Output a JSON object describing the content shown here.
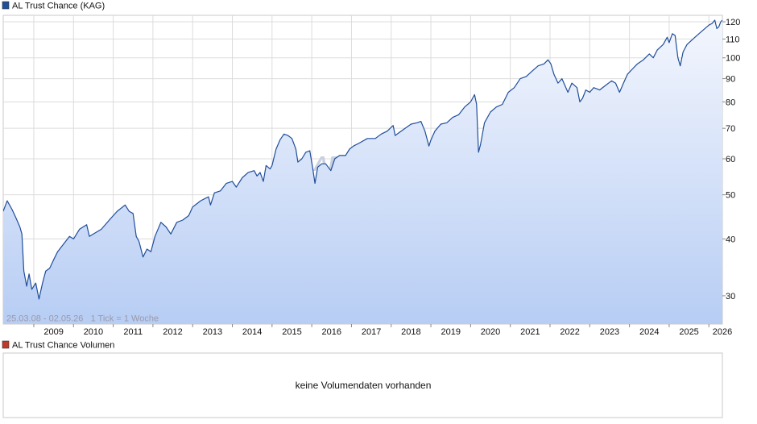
{
  "price_panel": {
    "legend_label": "AL Trust Chance (KAG)",
    "legend_color": "#1f4e9b",
    "info_text": "25.03.08 - 02.05.26   1 Tick = 1 Woche",
    "watermark": "ARIVA.DE"
  },
  "volume_panel": {
    "legend_label": "AL Trust Chance Volumen",
    "legend_color": "#c0392b",
    "empty_message": "keine Volumendaten vorhanden"
  },
  "chart_data": {
    "type": "area",
    "y_scale": "log",
    "ylim": [
      26,
      124
    ],
    "y_ticks": [
      30,
      40,
      50,
      60,
      70,
      80,
      90,
      100,
      110,
      120
    ],
    "x_range": [
      2008.23,
      2026.34
    ],
    "x_ticks": [
      "2009",
      "2010",
      "2011",
      "2012",
      "2013",
      "2014",
      "2015",
      "2016",
      "2017",
      "2018",
      "2019",
      "2020",
      "2021",
      "2022",
      "2023",
      "2024",
      "2025",
      "2026"
    ],
    "grid": true,
    "line_color": "#1f4e9b",
    "area_color_top": "#f3f6fd",
    "area_color_bottom": "#b7cdf4",
    "series": [
      {
        "values": [
          [
            2008.23,
            46.0
          ],
          [
            2008.33,
            48.5
          ],
          [
            2008.45,
            46.5
          ],
          [
            2008.55,
            44.5
          ],
          [
            2008.65,
            42.5
          ],
          [
            2008.7,
            41.0
          ],
          [
            2008.75,
            34.0
          ],
          [
            2008.82,
            31.5
          ],
          [
            2008.88,
            33.5
          ],
          [
            2008.95,
            31.0
          ],
          [
            2009.05,
            32.0
          ],
          [
            2009.13,
            29.5
          ],
          [
            2009.22,
            32.0
          ],
          [
            2009.3,
            34.0
          ],
          [
            2009.4,
            34.5
          ],
          [
            2009.5,
            36.0
          ],
          [
            2009.6,
            37.5
          ],
          [
            2009.75,
            39.0
          ],
          [
            2009.9,
            40.5
          ],
          [
            2010.0,
            40.0
          ],
          [
            2010.15,
            42.0
          ],
          [
            2010.33,
            43.0
          ],
          [
            2010.4,
            40.5
          ],
          [
            2010.5,
            41.0
          ],
          [
            2010.7,
            42.0
          ],
          [
            2010.9,
            44.0
          ],
          [
            2011.0,
            45.0
          ],
          [
            2011.1,
            46.0
          ],
          [
            2011.3,
            47.5
          ],
          [
            2011.4,
            46.0
          ],
          [
            2011.5,
            45.5
          ],
          [
            2011.58,
            40.5
          ],
          [
            2011.65,
            39.5
          ],
          [
            2011.75,
            36.5
          ],
          [
            2011.85,
            38.0
          ],
          [
            2011.95,
            37.5
          ],
          [
            2012.05,
            40.5
          ],
          [
            2012.2,
            43.5
          ],
          [
            2012.33,
            42.5
          ],
          [
            2012.45,
            41.0
          ],
          [
            2012.6,
            43.5
          ],
          [
            2012.75,
            44.0
          ],
          [
            2012.9,
            45.0
          ],
          [
            2013.0,
            47.0
          ],
          [
            2013.2,
            48.5
          ],
          [
            2013.4,
            49.5
          ],
          [
            2013.45,
            47.5
          ],
          [
            2013.55,
            50.5
          ],
          [
            2013.7,
            51.0
          ],
          [
            2013.85,
            53.0
          ],
          [
            2014.0,
            53.5
          ],
          [
            2014.1,
            52.0
          ],
          [
            2014.25,
            54.5
          ],
          [
            2014.4,
            56.0
          ],
          [
            2014.55,
            56.5
          ],
          [
            2014.62,
            55.0
          ],
          [
            2014.7,
            56.0
          ],
          [
            2014.78,
            53.5
          ],
          [
            2014.85,
            58.0
          ],
          [
            2014.95,
            57.0
          ],
          [
            2015.0,
            58.0
          ],
          [
            2015.1,
            63.0
          ],
          [
            2015.2,
            66.0
          ],
          [
            2015.3,
            68.0
          ],
          [
            2015.4,
            67.5
          ],
          [
            2015.5,
            66.5
          ],
          [
            2015.6,
            63.0
          ],
          [
            2015.65,
            59.0
          ],
          [
            2015.75,
            60.0
          ],
          [
            2015.85,
            62.0
          ],
          [
            2015.95,
            62.5
          ],
          [
            2016.02,
            57.5
          ],
          [
            2016.08,
            53.0
          ],
          [
            2016.15,
            57.5
          ],
          [
            2016.25,
            58.5
          ],
          [
            2016.35,
            58.5
          ],
          [
            2016.48,
            56.5
          ],
          [
            2016.58,
            60.0
          ],
          [
            2016.7,
            61.0
          ],
          [
            2016.85,
            61.0
          ],
          [
            2016.95,
            63.0
          ],
          [
            2017.05,
            64.0
          ],
          [
            2017.2,
            65.0
          ],
          [
            2017.4,
            66.5
          ],
          [
            2017.6,
            66.5
          ],
          [
            2017.75,
            68.0
          ],
          [
            2017.9,
            69.0
          ],
          [
            2018.05,
            71.0
          ],
          [
            2018.1,
            67.5
          ],
          [
            2018.2,
            68.5
          ],
          [
            2018.35,
            70.0
          ],
          [
            2018.5,
            71.5
          ],
          [
            2018.65,
            72.0
          ],
          [
            2018.75,
            72.5
          ],
          [
            2018.85,
            69.0
          ],
          [
            2018.95,
            64.0
          ],
          [
            2019.0,
            66.0
          ],
          [
            2019.1,
            69.0
          ],
          [
            2019.25,
            71.5
          ],
          [
            2019.4,
            72.0
          ],
          [
            2019.55,
            74.0
          ],
          [
            2019.7,
            75.0
          ],
          [
            2019.85,
            78.0
          ],
          [
            2020.0,
            80.0
          ],
          [
            2020.1,
            83.0
          ],
          [
            2020.15,
            79.0
          ],
          [
            2020.2,
            62.0
          ],
          [
            2020.25,
            64.5
          ],
          [
            2020.35,
            72.0
          ],
          [
            2020.5,
            76.0
          ],
          [
            2020.65,
            78.0
          ],
          [
            2020.8,
            79.0
          ],
          [
            2020.95,
            84.0
          ],
          [
            2021.1,
            86.0
          ],
          [
            2021.25,
            90.0
          ],
          [
            2021.4,
            91.0
          ],
          [
            2021.55,
            93.5
          ],
          [
            2021.7,
            96.0
          ],
          [
            2021.85,
            97.0
          ],
          [
            2021.95,
            99.0
          ],
          [
            2022.02,
            97.0
          ],
          [
            2022.1,
            92.0
          ],
          [
            2022.2,
            88.0
          ],
          [
            2022.3,
            90.0
          ],
          [
            2022.45,
            84.0
          ],
          [
            2022.55,
            88.0
          ],
          [
            2022.68,
            86.0
          ],
          [
            2022.75,
            80.0
          ],
          [
            2022.82,
            81.5
          ],
          [
            2022.9,
            85.0
          ],
          [
            2023.0,
            84.0
          ],
          [
            2023.1,
            86.0
          ],
          [
            2023.25,
            85.0
          ],
          [
            2023.4,
            87.0
          ],
          [
            2023.55,
            89.0
          ],
          [
            2023.65,
            88.0
          ],
          [
            2023.75,
            84.0
          ],
          [
            2023.85,
            88.0
          ],
          [
            2023.95,
            92.0
          ],
          [
            2024.05,
            94.0
          ],
          [
            2024.2,
            97.0
          ],
          [
            2024.35,
            99.0
          ],
          [
            2024.5,
            102.0
          ],
          [
            2024.6,
            100.0
          ],
          [
            2024.7,
            104.0
          ],
          [
            2024.85,
            107.0
          ],
          [
            2024.95,
            111.0
          ],
          [
            2025.0,
            108.0
          ],
          [
            2025.08,
            113.0
          ],
          [
            2025.15,
            112.0
          ],
          [
            2025.22,
            100.0
          ],
          [
            2025.28,
            96.0
          ],
          [
            2025.35,
            103.0
          ],
          [
            2025.45,
            107.0
          ],
          [
            2025.6,
            110.0
          ],
          [
            2025.75,
            113.0
          ],
          [
            2025.9,
            116.0
          ],
          [
            2026.0,
            118.0
          ],
          [
            2026.08,
            119.0
          ],
          [
            2026.15,
            121.0
          ],
          [
            2026.2,
            116.0
          ],
          [
            2026.25,
            117.0
          ],
          [
            2026.3,
            120.0
          ],
          [
            2026.34,
            121.0
          ]
        ]
      }
    ]
  }
}
